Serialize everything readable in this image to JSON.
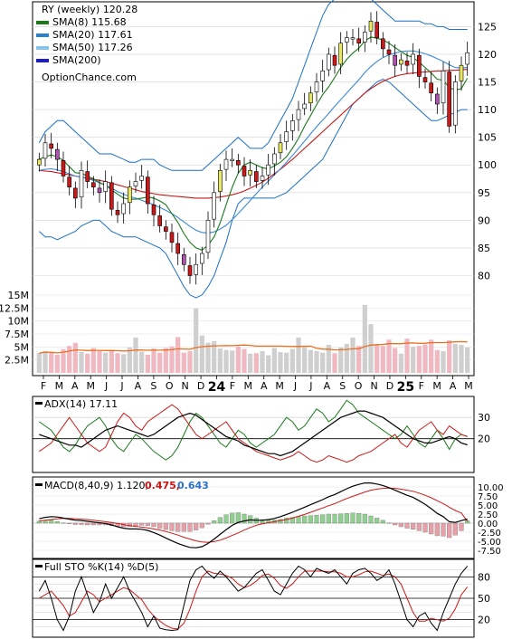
{
  "chart_data": [
    {
      "type": "candlestick",
      "panel": "price",
      "legend": [
        {
          "label": "RY (weekly) 120.28",
          "color": null
        },
        {
          "label": "SMA(8) 115.68",
          "color": "#1a7a1a"
        },
        {
          "label": "SMA(20) 117.61",
          "color": "#2a7fd0"
        },
        {
          "label": "SMA(50) 117.26",
          "color": "#7fc4f0"
        },
        {
          "label": "SMA(200)",
          "color": "#1c1cc8"
        }
      ],
      "watermark": "OptionChance.com",
      "y_ticks": [
        80,
        85,
        90,
        95,
        100,
        105,
        110,
        115,
        120,
        125
      ],
      "ylim": [
        75.5,
        128.5
      ],
      "close": [
        101,
        104,
        103,
        101,
        98,
        96,
        94,
        99,
        97,
        96,
        95,
        97,
        92,
        91,
        93,
        96,
        97,
        98,
        93,
        91,
        89,
        88,
        86,
        84,
        82,
        80,
        82,
        84,
        90,
        95,
        99,
        101,
        101,
        100,
        98,
        99,
        97,
        98,
        100,
        102,
        104,
        106,
        108,
        110,
        111,
        113,
        115,
        117,
        120,
        118,
        122,
        123,
        123,
        122,
        124,
        126,
        123,
        121,
        120,
        118,
        119,
        118,
        120,
        116,
        115,
        113,
        111,
        117,
        107,
        115,
        118,
        120.28
      ],
      "sma8": [
        101,
        101.5,
        101.8,
        101.5,
        100.8,
        99.7,
        98.6,
        98.5,
        98,
        97.5,
        96.8,
        96.3,
        95.5,
        94.7,
        94,
        93.8,
        93.8,
        94,
        94.2,
        94,
        93.5,
        92.8,
        91.2,
        89.6,
        87.6,
        86,
        85,
        84.6,
        85.5,
        87,
        89.5,
        92.8,
        96,
        98.5,
        100,
        100.5,
        100,
        99.5,
        99.3,
        99.8,
        100.5,
        101.5,
        103,
        104.8,
        107,
        108.9,
        110.9,
        112.7,
        114.1,
        115.8,
        117.6,
        119.1,
        120.2,
        121.1,
        122.4,
        123.1,
        122.9,
        122.6,
        122,
        121.2,
        120.5,
        119.8,
        119.4,
        118.6,
        117.6,
        116.6,
        115.5,
        115.3,
        114,
        113.5,
        113.8,
        115.68
      ],
      "sma20": [
        99,
        99.2,
        99.3,
        99.1,
        98.8,
        98.4,
        98,
        97.8,
        97.5,
        97.2,
        96.8,
        96.4,
        95.8,
        95.2,
        94.7,
        94.3,
        94,
        93.6,
        93.2,
        92.8,
        92.3,
        91.8,
        91.2,
        90.5,
        89.7,
        88.9,
        88.2,
        87.8,
        87.7,
        87.9,
        88.4,
        89.1,
        90.1,
        91.2,
        92.4,
        93.6,
        94.8,
        96,
        97.1,
        98.2,
        99.3,
        100.5,
        101.7,
        103,
        104.3,
        105.6,
        106.9,
        108.1,
        109.3,
        110.6,
        111.8,
        113,
        114.2,
        115.4,
        116.7,
        117.8,
        118.7,
        119.4,
        119.9,
        120.2,
        120.5,
        120.6,
        120.6,
        120.4,
        120.1,
        119.7,
        119.2,
        118.7,
        118.1,
        117.6,
        117.5,
        117.61
      ],
      "sma50": [
        99,
        98.9,
        98.8,
        98.6,
        98.4,
        98.2,
        98,
        97.8,
        97.6,
        97.4,
        97.2,
        97,
        96.7,
        96.4,
        96.1,
        95.8,
        95.5,
        95.2,
        95,
        94.8,
        94.6,
        94.5,
        94.4,
        94.3,
        94.2,
        94.1,
        94,
        94,
        94,
        94.1,
        94.2,
        94.4,
        94.6,
        94.9,
        95.3,
        95.8,
        96.3,
        96.9,
        97.6,
        98.4,
        99.2,
        100.1,
        101,
        102,
        103,
        104,
        105,
        106,
        107,
        108,
        109,
        110,
        111,
        112,
        113,
        113.8,
        114.5,
        115.1,
        115.6,
        116,
        116.3,
        116.5,
        116.6,
        116.7,
        116.8,
        116.9,
        117,
        117,
        117.1,
        117.1,
        117.2,
        117.26
      ],
      "bb_upper": [
        104,
        106,
        107,
        108,
        108,
        107,
        106,
        105,
        104,
        103,
        102,
        102,
        102,
        101.5,
        101,
        100.5,
        100.5,
        101,
        101,
        101,
        100,
        99.5,
        99,
        99,
        99,
        99,
        99,
        99,
        100,
        101,
        102,
        103,
        104,
        105,
        104,
        103,
        103,
        103,
        104,
        106,
        108,
        110,
        112,
        115,
        118,
        121,
        124,
        127,
        129,
        130,
        131,
        131,
        131,
        131,
        131,
        130,
        129,
        128,
        127,
        126,
        126,
        126,
        126,
        126,
        125.5,
        125.5,
        125,
        125,
        124.5,
        124.5,
        124.5,
        124.5
      ],
      "bb_lower": [
        88,
        87,
        87,
        86.5,
        87,
        87.5,
        88,
        89,
        89.5,
        90,
        90,
        89,
        88,
        87.5,
        87,
        87,
        87,
        86.5,
        86,
        85.5,
        85,
        84,
        82,
        80,
        78,
        76.5,
        76,
        76.5,
        78,
        80,
        83,
        86,
        90,
        93,
        94,
        94,
        94,
        94,
        94,
        94,
        94.5,
        95,
        96,
        97,
        98,
        99,
        100,
        101,
        103,
        105,
        107,
        109,
        111,
        112,
        113,
        114,
        115,
        115.5,
        115,
        114,
        113,
        112,
        111,
        110,
        109,
        108,
        108,
        108.5,
        109,
        109.5,
        110,
        110
      ],
      "x_labels": [
        "F",
        "M",
        "A",
        "M",
        "J",
        "J",
        "A",
        "S",
        "O",
        "N",
        "D",
        "24",
        "F",
        "M",
        "A",
        "M",
        "J",
        "J",
        "A",
        "S",
        "O",
        "N",
        "D",
        "25",
        "F",
        "M",
        "A",
        "M"
      ]
    },
    {
      "type": "bar",
      "panel": "volume",
      "y_ticks": [
        "15M",
        "12.5M",
        "10M",
        "7.5M",
        "5M",
        "2.5M"
      ],
      "ylim": [
        0,
        15
      ],
      "values": [
        3.8,
        4.2,
        3.9,
        3.5,
        4.6,
        5.2,
        5.8,
        4.0,
        3.7,
        4.8,
        4.2,
        3.9,
        4.4,
        3.8,
        3.6,
        4.9,
        6.8,
        4.1,
        3.5,
        4.7,
        3.9,
        4.8,
        5.1,
        6.9,
        3.9,
        4.2,
        12.4,
        7.2,
        5.8,
        6.1,
        4.7,
        4.4,
        4.3,
        5.1,
        4.6,
        3.7,
        3.8,
        4.2,
        3.4,
        4.8,
        4.0,
        3.9,
        4.6,
        6.8,
        5.0,
        4.4,
        4.2,
        3.9,
        5.4,
        3.8,
        4.9,
        5.6,
        6.8,
        5.2,
        13.1,
        9.4,
        5.4,
        5.2,
        6.4,
        4.8,
        3.7,
        6.6,
        5.0,
        5.2,
        5.5,
        6.4,
        4.4,
        4.2,
        6.3,
        5.6,
        5.4,
        4.9
      ]
    },
    {
      "type": "line",
      "panel": "adx",
      "legend": [
        {
          "label": "ADX(14) 17.11",
          "color": "#000000"
        }
      ],
      "y_ticks": [
        20,
        30
      ],
      "ylim": [
        5,
        39
      ],
      "adx": [
        22,
        21,
        20,
        19,
        18,
        17,
        17,
        16,
        18,
        20,
        22,
        24,
        25,
        26,
        25,
        24,
        23,
        22,
        21,
        22,
        24,
        26,
        28,
        30,
        31,
        32,
        31,
        29,
        27,
        25,
        23,
        21,
        20,
        19,
        17,
        16,
        15,
        14,
        13,
        13,
        12,
        13,
        14,
        16,
        18,
        20,
        22,
        24,
        26,
        28,
        30,
        31,
        32,
        33,
        33,
        32,
        31,
        30,
        28,
        26,
        24,
        22,
        20,
        19,
        18,
        18,
        19,
        20,
        21,
        20,
        18,
        17.11
      ],
      "pdi": [
        28,
        26,
        24,
        20,
        16,
        14,
        17,
        22,
        26,
        28,
        30,
        26,
        20,
        16,
        14,
        18,
        22,
        20,
        17,
        14,
        12,
        10,
        12,
        16,
        22,
        28,
        32,
        30,
        26,
        22,
        18,
        16,
        20,
        24,
        22,
        18,
        16,
        18,
        20,
        22,
        26,
        30,
        28,
        24,
        26,
        30,
        34,
        32,
        28,
        30,
        34,
        38,
        36,
        32,
        30,
        28,
        26,
        24,
        22,
        20,
        22,
        26,
        22,
        18,
        16,
        20,
        24,
        20,
        15,
        20,
        22,
        21
      ],
      "mdi": [
        14,
        16,
        18,
        22,
        26,
        30,
        26,
        22,
        18,
        16,
        14,
        16,
        22,
        28,
        32,
        30,
        26,
        24,
        28,
        30,
        32,
        34,
        36,
        34,
        30,
        26,
        22,
        20,
        22,
        24,
        26,
        28,
        24,
        20,
        18,
        16,
        14,
        13,
        12,
        11,
        10,
        11,
        12,
        14,
        12,
        10,
        9,
        10,
        12,
        11,
        10,
        9,
        10,
        12,
        13,
        14,
        16,
        18,
        20,
        22,
        18,
        16,
        20,
        24,
        26,
        28,
        24,
        22,
        26,
        24,
        22,
        21
      ]
    },
    {
      "type": "line",
      "panel": "macd",
      "legend": [
        {
          "label": "MACD(8,40,9) 1.120,",
          "color": "#000000"
        },
        {
          "label": "0.475,",
          "color": "#d01010"
        },
        {
          "label": "0.643",
          "color": "#2a6fd0"
        }
      ],
      "y_ticks": [
        "10.00",
        "7.50",
        "5.00",
        "2.50",
        "0.00",
        "-2.50",
        "-5.00",
        "-7.50"
      ],
      "ylim": [
        -9,
        11.5
      ],
      "macd": [
        1.2,
        1.6,
        1.8,
        1.7,
        1.4,
        1.1,
        0.8,
        0.7,
        0.5,
        0.3,
        0.1,
        -0.1,
        -0.5,
        -1.0,
        -1.4,
        -1.6,
        -1.6,
        -1.7,
        -2.0,
        -2.6,
        -3.3,
        -4.1,
        -4.9,
        -5.6,
        -6.2,
        -6.7,
        -6.8,
        -6.5,
        -5.6,
        -4.4,
        -3.1,
        -1.8,
        -0.6,
        0.2,
        0.6,
        0.9,
        0.8,
        0.8,
        1.0,
        1.3,
        1.8,
        2.4,
        3.0,
        3.7,
        4.4,
        5.1,
        5.8,
        6.5,
        7.3,
        7.9,
        8.7,
        9.5,
        10.2,
        10.7,
        11.1,
        11.1,
        10.8,
        10.4,
        9.8,
        9.1,
        8.4,
        7.7,
        7.1,
        6.2,
        5.2,
        4.0,
        2.7,
        1.8,
        0.4,
        0.2,
        0.7,
        1.12
      ],
      "signal": [
        0.6,
        0.8,
        1.0,
        1.2,
        1.3,
        1.3,
        1.2,
        1.1,
        1.0,
        0.8,
        0.6,
        0.4,
        0.2,
        -0.1,
        -0.4,
        -0.7,
        -0.9,
        -1.1,
        -1.3,
        -1.6,
        -1.9,
        -2.3,
        -2.8,
        -3.3,
        -3.9,
        -4.4,
        -4.9,
        -5.2,
        -5.3,
        -5.1,
        -4.7,
        -4.1,
        -3.4,
        -2.7,
        -1.9,
        -1.2,
        -0.6,
        -0.2,
        0.1,
        0.4,
        0.7,
        1.0,
        1.4,
        1.9,
        2.4,
        3.0,
        3.6,
        4.2,
        4.8,
        5.4,
        6.1,
        6.8,
        7.4,
        8.0,
        8.6,
        9.1,
        9.4,
        9.6,
        9.7,
        9.6,
        9.4,
        9.1,
        8.8,
        8.3,
        7.7,
        7.0,
        6.2,
        5.4,
        4.4,
        3.5,
        2.8,
        0.475
      ],
      "histogram": [
        0.6,
        0.8,
        0.8,
        0.5,
        0.1,
        -0.2,
        -0.4,
        -0.4,
        -0.5,
        -0.5,
        -0.5,
        -0.5,
        -0.7,
        -0.9,
        -1.0,
        -0.9,
        -0.7,
        -0.6,
        -0.7,
        -1.0,
        -1.4,
        -1.8,
        -2.1,
        -2.3,
        -2.3,
        -2.3,
        -1.9,
        -1.3,
        -0.3,
        0.7,
        1.6,
        2.3,
        2.8,
        2.9,
        2.5,
        2.1,
        1.4,
        1.0,
        0.9,
        0.9,
        1.1,
        1.4,
        1.6,
        1.8,
        2.0,
        2.1,
        2.2,
        2.3,
        2.5,
        2.5,
        2.6,
        2.7,
        2.8,
        2.7,
        2.5,
        2.0,
        1.4,
        0.8,
        0.1,
        -0.5,
        -1.0,
        -1.4,
        -1.7,
        -2.1,
        -2.5,
        -3.0,
        -3.5,
        -3.6,
        -4.0,
        -3.3,
        -2.1,
        0.643
      ]
    },
    {
      "type": "line",
      "panel": "stochastic",
      "legend": [
        {
          "label": "Full STO %K(14) %D(5)",
          "color": "#000000"
        }
      ],
      "y_ticks": [
        20,
        50,
        80
      ],
      "ylim": [
        -2,
        102
      ],
      "k": [
        60,
        75,
        50,
        20,
        5,
        25,
        60,
        80,
        55,
        30,
        45,
        70,
        50,
        65,
        80,
        60,
        45,
        30,
        10,
        25,
        8,
        6,
        5,
        6,
        40,
        75,
        90,
        95,
        85,
        78,
        88,
        80,
        70,
        60,
        65,
        75,
        85,
        90,
        75,
        60,
        55,
        70,
        85,
        95,
        90,
        80,
        92,
        88,
        85,
        90,
        80,
        70,
        85,
        90,
        92,
        85,
        75,
        80,
        90,
        70,
        45,
        20,
        10,
        25,
        30,
        15,
        5,
        30,
        50,
        70,
        85,
        95
      ],
      "d": [
        50,
        55,
        60,
        50,
        40,
        25,
        30,
        45,
        60,
        55,
        45,
        50,
        55,
        60,
        65,
        62,
        55,
        48,
        35,
        25,
        18,
        12,
        8,
        7,
        15,
        35,
        60,
        80,
        88,
        85,
        84,
        82,
        78,
        70,
        65,
        68,
        74,
        82,
        84,
        78,
        68,
        64,
        70,
        80,
        88,
        88,
        88,
        88,
        87,
        87,
        85,
        80,
        80,
        83,
        87,
        88,
        85,
        82,
        84,
        80,
        70,
        50,
        30,
        18,
        18,
        22,
        20,
        18,
        22,
        35,
        55,
        66
      ]
    }
  ]
}
